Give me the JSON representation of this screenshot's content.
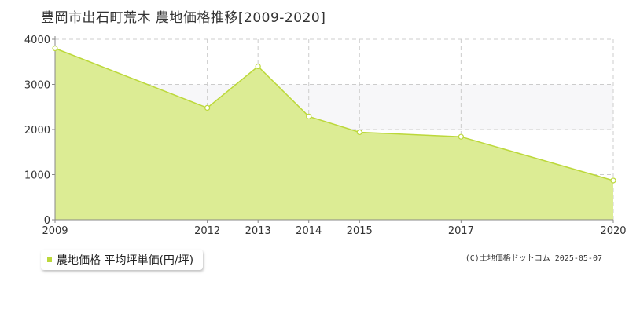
{
  "title": "豊岡市出石町荒木  農地価格推移[2009-2020]",
  "legend": {
    "label": "農地価格 平均坪単価(円/坪)"
  },
  "copyright": "(C)土地価格ドットコム 2025-05-07",
  "colors": {
    "area_fill": "#dcec94",
    "line": "#bcd83a",
    "band": "#f7f7f9",
    "grid": "#cccccc",
    "axis": "#888888"
  },
  "chart_data": {
    "type": "area",
    "x": [
      2009,
      2012,
      2013,
      2014,
      2015,
      2017,
      2020
    ],
    "x_tick_labels": [
      "2009",
      "2012",
      "2013",
      "2014",
      "2015",
      "2017",
      "2020"
    ],
    "series": [
      {
        "name": "農地価格 平均坪単価(円/坪)",
        "values": [
          3800,
          2480,
          3400,
          2290,
          1940,
          1840,
          870
        ]
      }
    ],
    "ylim": [
      0,
      4000
    ],
    "y_ticks": [
      0,
      1000,
      2000,
      3000,
      4000
    ],
    "y_tick_labels": [
      "0",
      "1000",
      "2000",
      "3000",
      "4000"
    ],
    "grid": true,
    "legend_position": "bottom-left"
  }
}
